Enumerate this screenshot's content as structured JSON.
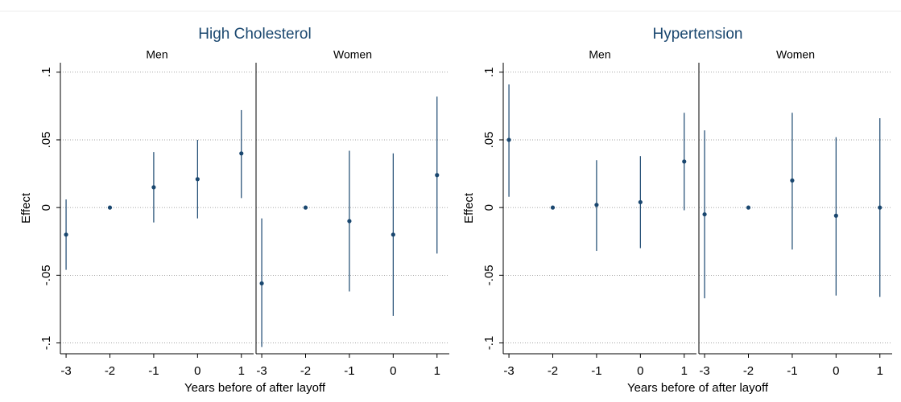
{
  "chart_data": [
    {
      "type": "errorbar",
      "title": "High Cholesterol",
      "y_label": "Effect",
      "x_label": "Years before of after layoff",
      "color": "#1a476f",
      "grid": true,
      "xlim": [
        -3.13,
        1.28
      ],
      "xticks": [
        -3,
        -2,
        -1,
        0,
        1
      ],
      "ylim": [
        -0.108,
        0.107
      ],
      "yticks": [
        {
          "value": -0.1,
          "label": "-.1"
        },
        {
          "value": -0.05,
          "label": "-.05"
        },
        {
          "value": 0,
          "label": "0"
        },
        {
          "value": 0.05,
          "label": ".05"
        },
        {
          "value": 0.1,
          "label": ".1"
        }
      ],
      "panels": [
        {
          "subtitle": "Men",
          "x": [
            -3,
            -2,
            -1,
            0,
            1
          ],
          "values": [
            -0.02,
            0,
            0.015,
            0.021,
            0.04
          ],
          "lower": [
            -0.046,
            null,
            -0.011,
            -0.008,
            0.007
          ],
          "upper": [
            0.006,
            null,
            0.041,
            0.05,
            0.072
          ]
        },
        {
          "subtitle": "Women",
          "x": [
            -3,
            -2,
            -1,
            0,
            1
          ],
          "values": [
            -0.056,
            0,
            -0.01,
            -0.02,
            0.024
          ],
          "lower": [
            -0.103,
            null,
            -0.062,
            -0.08,
            -0.034
          ],
          "upper": [
            -0.008,
            null,
            0.042,
            0.04,
            0.082
          ]
        }
      ]
    },
    {
      "type": "errorbar",
      "title": "Hypertension",
      "y_label": "Effect",
      "x_label": "Years before of after layoff",
      "color": "#1a476f",
      "grid": true,
      "xlim": [
        -3.13,
        1.28
      ],
      "xticks": [
        -3,
        -2,
        -1,
        0,
        1
      ],
      "ylim": [
        -0.108,
        0.107
      ],
      "yticks": [
        {
          "value": -0.1,
          "label": "-.1"
        },
        {
          "value": -0.05,
          "label": "-.05"
        },
        {
          "value": 0,
          "label": "0"
        },
        {
          "value": 0.05,
          "label": ".05"
        },
        {
          "value": 0.1,
          "label": ".1"
        }
      ],
      "panels": [
        {
          "subtitle": "Men",
          "x": [
            -3,
            -2,
            -1,
            0,
            1
          ],
          "values": [
            0.05,
            0,
            0.002,
            0.004,
            0.034
          ],
          "lower": [
            0.008,
            null,
            -0.032,
            -0.03,
            -0.002
          ],
          "upper": [
            0.091,
            null,
            0.035,
            0.038,
            0.07
          ]
        },
        {
          "subtitle": "Women",
          "x": [
            -3,
            -2,
            -1,
            0,
            1
          ],
          "values": [
            -0.005,
            0,
            0.02,
            -0.006,
            0
          ],
          "lower": [
            -0.067,
            null,
            -0.031,
            -0.065,
            -0.066
          ],
          "upper": [
            0.057,
            null,
            0.07,
            0.052,
            0.066
          ]
        }
      ]
    }
  ]
}
